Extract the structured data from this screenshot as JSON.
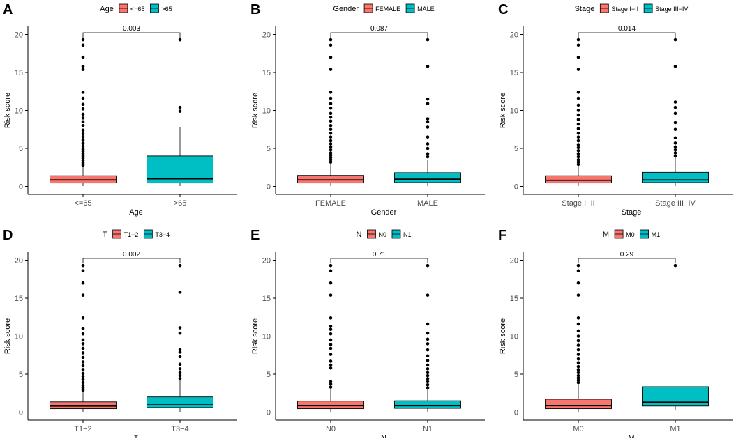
{
  "colors": {
    "group1": "#F8766D",
    "group2": "#00BFC4",
    "axis": "#000000",
    "outlier": "#000000"
  },
  "chart_data": [
    {
      "type": "box",
      "panel_label": "A",
      "legend_title": "Age",
      "categories": [
        "<=65",
        ">65"
      ],
      "xlabel": "Age",
      "ylabel": "Risk score",
      "ylim": [
        0,
        20
      ],
      "yticks": [
        0,
        5,
        10,
        15,
        20
      ],
      "p_value": "0.003",
      "boxes": [
        {
          "q1": 0.45,
          "median": 0.85,
          "q3": 1.4,
          "whisker_low": 0.05,
          "whisker_high": 2.6,
          "outliers": [
            2.8,
            3.1,
            3.4,
            3.7,
            4.0,
            4.3,
            4.6,
            4.9,
            5.3,
            5.7,
            6.1,
            6.5,
            6.9,
            7.4,
            8.0,
            8.5,
            9.0,
            9.5,
            10.2,
            10.8,
            11.6,
            12.4,
            15.4,
            15.8,
            17.0,
            18.6,
            19.3
          ]
        },
        {
          "q1": 0.45,
          "median": 1.0,
          "q3": 4.0,
          "whisker_low": 0.05,
          "whisker_high": 7.8,
          "outliers": [
            9.9,
            10.4,
            19.3
          ]
        }
      ]
    },
    {
      "type": "box",
      "panel_label": "B",
      "legend_title": "Gender",
      "categories": [
        "FEMALE",
        "MALE"
      ],
      "xlabel": "Gender",
      "ylabel": "Risk score",
      "ylim": [
        0,
        20
      ],
      "yticks": [
        0,
        5,
        10,
        15,
        20
      ],
      "p_value": "0.087",
      "boxes": [
        {
          "q1": 0.45,
          "median": 0.85,
          "q3": 1.45,
          "whisker_low": 0.05,
          "whisker_high": 3.0,
          "outliers": [
            3.2,
            3.5,
            3.8,
            4.1,
            4.4,
            4.8,
            5.2,
            5.6,
            6.0,
            6.5,
            7.0,
            7.5,
            8.0,
            8.6,
            9.1,
            9.6,
            10.3,
            10.9,
            11.6,
            12.4,
            15.4,
            17.0,
            18.6,
            19.3
          ]
        },
        {
          "q1": 0.5,
          "median": 0.95,
          "q3": 1.8,
          "whisker_low": 0.05,
          "whisker_high": 3.5,
          "outliers": [
            3.9,
            4.3,
            5.0,
            5.6,
            6.5,
            7.8,
            8.5,
            8.9,
            10.9,
            11.5,
            15.8,
            19.3
          ]
        }
      ]
    },
    {
      "type": "box",
      "panel_label": "C",
      "legend_title": "Stage",
      "categories": [
        "Stage I−II",
        "Stage III−IV"
      ],
      "xlabel": "Stage",
      "ylabel": "Risk score",
      "ylim": [
        0,
        20
      ],
      "yticks": [
        0,
        5,
        10,
        15,
        20
      ],
      "p_value": "0.014",
      "boxes": [
        {
          "q1": 0.45,
          "median": 0.8,
          "q3": 1.4,
          "whisker_low": 0.05,
          "whisker_high": 2.7,
          "outliers": [
            2.9,
            3.2,
            3.5,
            3.9,
            4.3,
            4.7,
            5.1,
            5.5,
            6.0,
            6.5,
            7.0,
            7.6,
            8.2,
            8.8,
            9.4,
            10.0,
            10.7,
            11.6,
            12.4,
            15.4,
            17.0,
            18.6,
            19.3
          ]
        },
        {
          "q1": 0.5,
          "median": 0.85,
          "q3": 1.85,
          "whisker_low": 0.05,
          "whisker_high": 3.8,
          "outliers": [
            4.0,
            4.4,
            4.8,
            5.2,
            5.7,
            6.4,
            7.5,
            8.4,
            9.6,
            10.4,
            11.1,
            15.8,
            19.3
          ]
        }
      ]
    },
    {
      "type": "box",
      "panel_label": "D",
      "legend_title": "T",
      "categories": [
        "T1−2",
        "T3−4"
      ],
      "xlabel": "T",
      "ylabel": "Risk score",
      "ylim": [
        0,
        20
      ],
      "yticks": [
        0,
        5,
        10,
        15,
        20
      ],
      "p_value": "0.002",
      "boxes": [
        {
          "q1": 0.45,
          "median": 0.8,
          "q3": 1.35,
          "whisker_low": 0.05,
          "whisker_high": 2.6,
          "outliers": [
            2.9,
            3.2,
            3.5,
            3.9,
            4.3,
            4.7,
            5.1,
            5.6,
            6.1,
            6.6,
            7.2,
            7.8,
            8.4,
            9.0,
            9.5,
            10.3,
            11.0,
            12.4,
            15.4,
            17.0,
            18.6,
            19.3
          ]
        },
        {
          "q1": 0.6,
          "median": 0.95,
          "q3": 2.0,
          "whisker_low": 0.05,
          "whisker_high": 4.2,
          "outliers": [
            4.4,
            4.8,
            5.2,
            5.7,
            6.3,
            7.3,
            7.9,
            8.2,
            10.4,
            11.1,
            15.8,
            19.3
          ]
        }
      ]
    },
    {
      "type": "box",
      "panel_label": "E",
      "legend_title": "N",
      "categories": [
        "N0",
        "N1"
      ],
      "xlabel": "N",
      "ylabel": "Risk score",
      "ylim": [
        0,
        20
      ],
      "yticks": [
        0,
        5,
        10,
        15,
        20
      ],
      "p_value": "0.71",
      "boxes": [
        {
          "q1": 0.45,
          "median": 0.85,
          "q3": 1.45,
          "whisker_low": 0.05,
          "whisker_high": 3.0,
          "outliers": [
            3.3,
            3.7,
            4.0,
            5.8,
            6.2,
            6.7,
            7.6,
            8.4,
            8.9,
            9.5,
            10.3,
            10.9,
            11.3,
            12.4,
            15.4,
            17.0,
            18.6,
            19.3
          ]
        },
        {
          "q1": 0.5,
          "median": 0.85,
          "q3": 1.5,
          "whisker_low": 0.05,
          "whisker_high": 3.0,
          "outliers": [
            3.2,
            3.6,
            4.0,
            4.4,
            4.8,
            5.2,
            5.7,
            6.2,
            6.8,
            7.4,
            8.2,
            9.0,
            9.6,
            10.4,
            11.6,
            15.4,
            19.3
          ]
        }
      ]
    },
    {
      "type": "box",
      "panel_label": "F",
      "legend_title": "M",
      "categories": [
        "M0",
        "M1"
      ],
      "xlabel": "M",
      "ylabel": "Risk score",
      "ylim": [
        0,
        20
      ],
      "yticks": [
        0,
        5,
        10,
        15,
        20
      ],
      "p_value": "0.29",
      "boxes": [
        {
          "q1": 0.45,
          "median": 0.85,
          "q3": 1.7,
          "whisker_low": 0.05,
          "whisker_high": 3.7,
          "outliers": [
            3.9,
            4.2,
            4.5,
            4.8,
            5.2,
            5.6,
            6.0,
            6.5,
            7.0,
            7.6,
            8.2,
            8.8,
            9.4,
            10.0,
            10.7,
            11.6,
            12.4,
            15.4,
            17.0,
            18.6,
            19.3
          ]
        },
        {
          "q1": 0.8,
          "median": 1.3,
          "q3": 3.35,
          "whisker_low": 0.3,
          "whisker_high": 3.35,
          "outliers": [
            19.3
          ]
        }
      ]
    }
  ]
}
